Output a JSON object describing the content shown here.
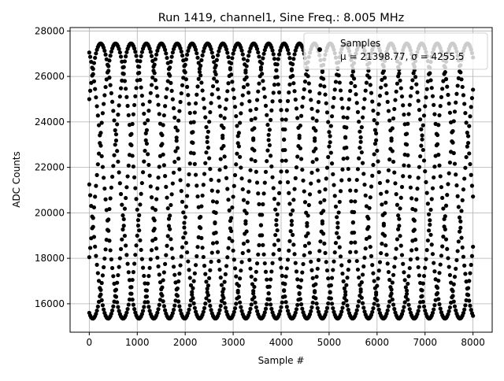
{
  "chart_data": {
    "type": "scatter",
    "title": "Run 1419, channel1, Sine Freq.: 8.005 MHz",
    "xlabel": "Sample #",
    "ylabel": "ADC Counts",
    "xlim": [
      -400,
      8400
    ],
    "ylim": [
      14750,
      28150
    ],
    "xticks": [
      0,
      1000,
      2000,
      3000,
      4000,
      5000,
      6000,
      7000,
      8000
    ],
    "yticks": [
      16000,
      18000,
      20000,
      22000,
      24000,
      26000,
      28000
    ],
    "grid": true,
    "legend": {
      "placement": "top-right",
      "entries": [
        {
          "label": "Samples",
          "stat": "μ = 21398.77, σ = 4255.5"
        }
      ]
    },
    "colors": {
      "points": "#000000",
      "grid": "#b0b0b0"
    },
    "signal": {
      "offset": 21400,
      "amplitude": 6050,
      "period_samples": 1595.5,
      "phases_at_x0": [
        {
          "start_value": 27050,
          "slope": "falling"
        },
        {
          "start_value": 25000,
          "slope": "rising"
        },
        {
          "start_value": 21250,
          "slope": "falling"
        },
        {
          "start_value": 18050,
          "slope": "rising"
        },
        {
          "start_value": 15600,
          "slope": "falling"
        }
      ],
      "x_end": 8000
    }
  }
}
